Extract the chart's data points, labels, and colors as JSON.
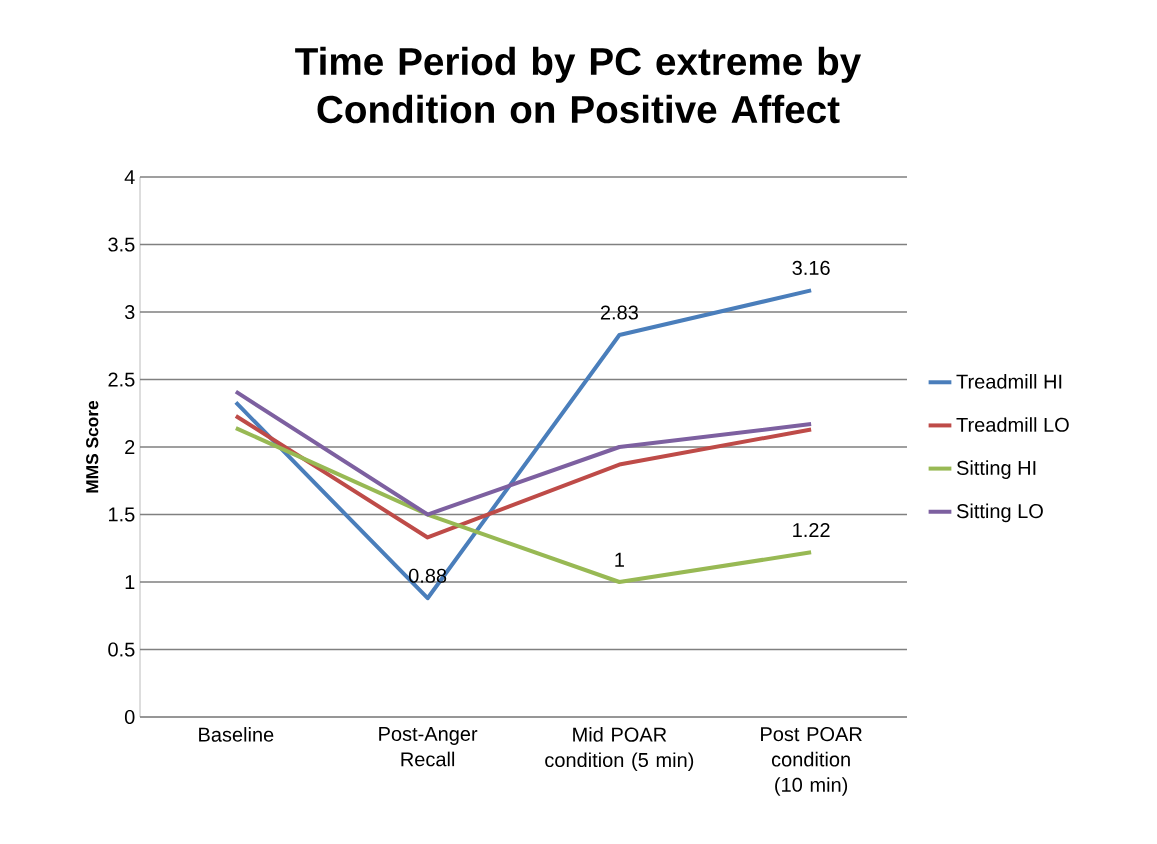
{
  "chart_data": {
    "type": "line",
    "title": "Time Period by PC extreme by Condition on Positive Affect",
    "ylabel": "MMS Score",
    "categories": [
      "Baseline",
      "Post-Anger Recall",
      "Mid POAR condition (5 min)",
      "Post POAR condition (10 min)"
    ],
    "series": [
      {
        "name": "Treadmill HI",
        "color": "#4a7ebb",
        "values": [
          2.33,
          0.88,
          2.83,
          3.16
        ],
        "value_labels": [
          null,
          "0.88",
          "2.83",
          "3.16"
        ]
      },
      {
        "name": "Treadmill LO",
        "color": "#be4b48",
        "values": [
          2.23,
          1.33,
          1.87,
          2.13
        ]
      },
      {
        "name": "Sitting HI",
        "color": "#98b954",
        "values": [
          2.14,
          1.5,
          1.0,
          1.22
        ],
        "value_labels": [
          null,
          null,
          "1",
          "1.22"
        ]
      },
      {
        "name": "Sitting LO",
        "color": "#7d60a0",
        "values": [
          2.41,
          1.5,
          2.0,
          2.17
        ]
      }
    ],
    "ylim": [
      0,
      4
    ],
    "yticks": [
      0,
      0.5,
      1,
      1.5,
      2,
      2.5,
      3,
      3.5,
      4
    ],
    "grid": "y",
    "legend": "right",
    "marker": "none",
    "line_style": "solid"
  }
}
